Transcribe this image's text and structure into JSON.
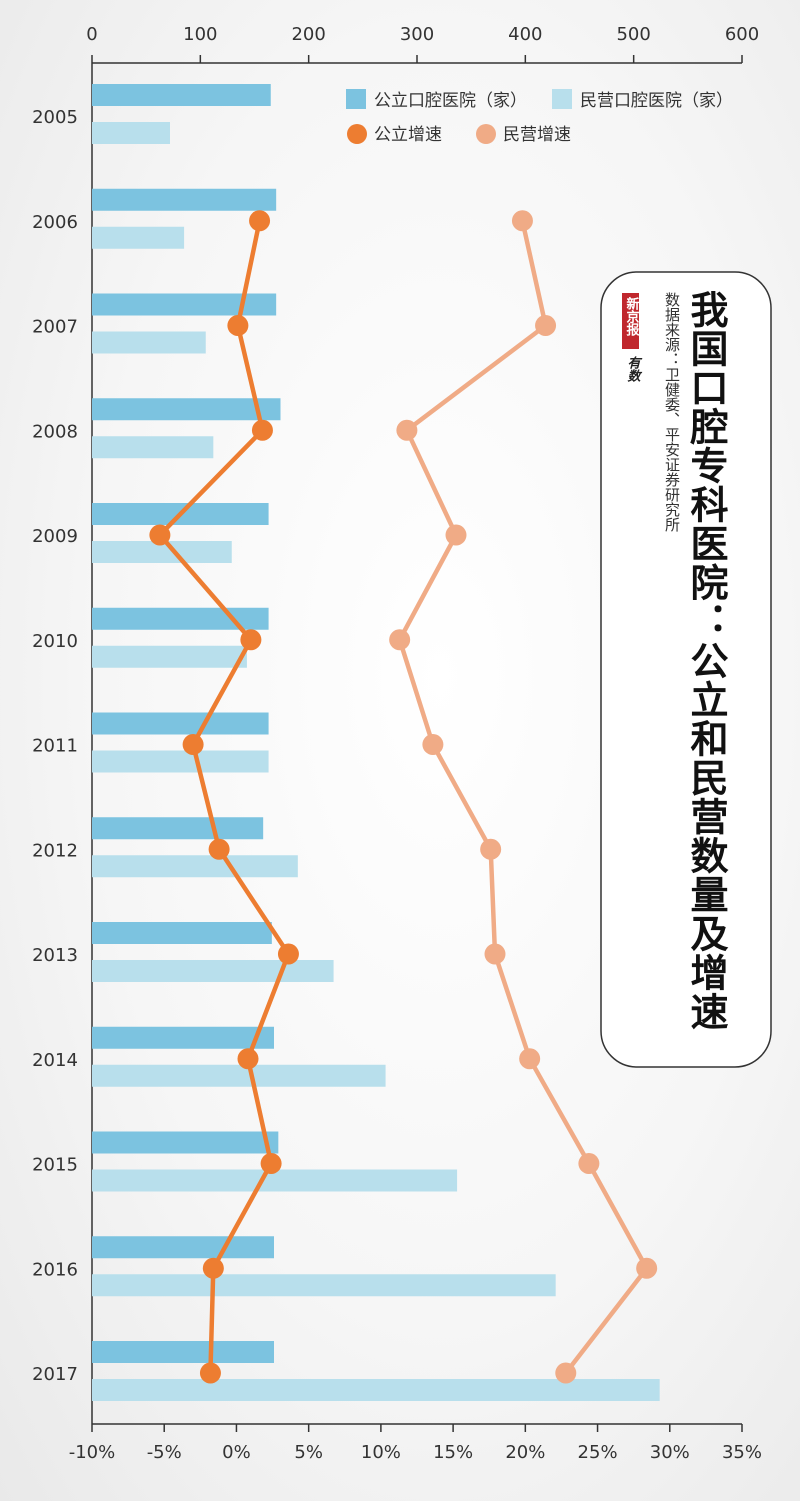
{
  "title": "我国口腔专科医院：公立和民营数量及增速",
  "source": "数据来源：卫健委、平安证券研究所",
  "logo": {
    "paper": "新京报",
    "brand": "有数"
  },
  "colors": {
    "public_bar": "#7cc3e0",
    "private_bar": "#b8dfec",
    "public_line": "#ed7d31",
    "private_line": "#f0ab86",
    "axis": "#333333"
  },
  "chart_data": {
    "type": "bar",
    "orientation": "horizontal",
    "categories": [
      "2005",
      "2006",
      "2007",
      "2008",
      "2009",
      "2010",
      "2011",
      "2012",
      "2013",
      "2014",
      "2015",
      "2016",
      "2017"
    ],
    "series": [
      {
        "name": "公立口腔医院（家）",
        "type": "bar",
        "axis": "top",
        "values": [
          165,
          170,
          170,
          174,
          163,
          163,
          163,
          158,
          166,
          168,
          172,
          168,
          168
        ]
      },
      {
        "name": "民营口腔医院（家）",
        "type": "bar",
        "axis": "top",
        "values": [
          72,
          85,
          105,
          112,
          129,
          143,
          163,
          190,
          223,
          271,
          337,
          428,
          524
        ]
      },
      {
        "name": "公立增速",
        "type": "line",
        "axis": "bottom",
        "values": [
          null,
          1.6,
          0.1,
          1.8,
          -5.3,
          1.0,
          -3.0,
          -1.2,
          3.6,
          0.8,
          2.4,
          -1.6,
          -1.8
        ]
      },
      {
        "name": "民营增速",
        "type": "line",
        "axis": "bottom",
        "values": [
          null,
          19.8,
          21.4,
          11.8,
          15.2,
          11.3,
          13.6,
          17.6,
          17.9,
          20.3,
          24.4,
          28.4,
          22.8
        ]
      }
    ],
    "x_top": {
      "ticks": [
        "0",
        "100",
        "200",
        "300",
        "400",
        "500",
        "600"
      ],
      "range": [
        0,
        600
      ]
    },
    "x_bottom": {
      "ticks": [
        "-10%",
        "-5%",
        "0%",
        "5%",
        "10%",
        "15%",
        "20%",
        "25%",
        "30%",
        "35%"
      ],
      "range": [
        -10,
        35
      ]
    },
    "legend": {
      "position": "top-right"
    },
    "grid": false
  }
}
